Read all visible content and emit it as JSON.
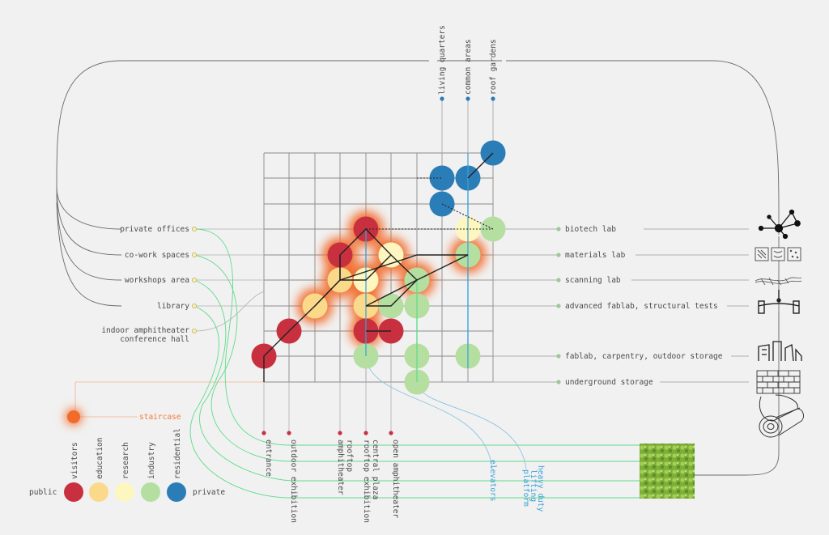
{
  "left_labels": [
    "private offices",
    "co-work spaces",
    "workshops area",
    "library",
    "indoor amphitheater",
    "conference hall"
  ],
  "right_labels": [
    "biotech lab",
    "materials lab",
    "scanning lab",
    "advanced fablab, structural tests",
    "fablab, carpentry, outdoor storage",
    "underground storage"
  ],
  "top_labels": [
    "living quarters",
    "common areas",
    "roof gardens"
  ],
  "bottom_labels": [
    "entrance",
    "outdoor exhibition",
    "rooftop",
    "amphitheater",
    "central plaza",
    "rooftop exhibition",
    "open amphitheater"
  ],
  "bottom_blue_labels": [
    "elevators",
    "heavy duty",
    "lifting",
    "platform"
  ],
  "staircase_label": "staircase",
  "legend": {
    "categories": [
      "visitors",
      "education",
      "research",
      "industry",
      "residential"
    ],
    "left_end": "public",
    "right_end": "private",
    "colors": [
      "#c8303f",
      "#fad98a",
      "#fdf7bf",
      "#b4dfa0",
      "#2a7db6"
    ]
  },
  "colors": {
    "visitors": "#c8303f",
    "education": "#fad98a",
    "research": "#fdf7bf",
    "industry": "#b4dfa0",
    "residential": "#2a7db6",
    "glow": "#f26b2b",
    "green_link": "#5ddc8a",
    "blue_link": "#3aa0d8"
  },
  "icons": [
    "network-icon",
    "material-samples-icon",
    "scan-icon",
    "structural-test-icon",
    "fablab-icon",
    "brick-wall-icon",
    "timber-log-icon"
  ]
}
